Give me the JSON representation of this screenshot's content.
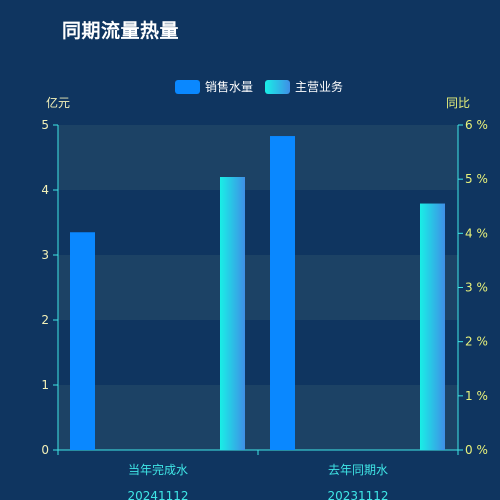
{
  "header": {
    "title": "同期流量热量"
  },
  "chart_data": {
    "type": "bar",
    "categories": [
      "当年完成水\n20241112",
      "去年同期水\n20231112"
    ],
    "series": [
      {
        "name": "销售水量",
        "values": [
          3.35,
          4.83
        ],
        "axis": "left",
        "color": "#0a88ff"
      },
      {
        "name": "主营业务",
        "values": [
          5.04,
          4.55
        ],
        "axis": "right",
        "color_from": "#19efe6",
        "color_to": "#3f8fe6"
      }
    ],
    "y_left": {
      "label": "亿元",
      "range": [
        0,
        5
      ],
      "ticks": [
        "0",
        "1",
        "2",
        "3",
        "4",
        "5"
      ]
    },
    "y_right": {
      "label": "同比",
      "range": [
        0,
        6
      ],
      "ticks": [
        "0 %",
        "1 %",
        "2 %",
        "3 %",
        "4 %",
        "5 %",
        "6 %"
      ]
    },
    "legend_position": "top-center",
    "grid": "alternating-bands",
    "colors": {
      "background": "#0f3560",
      "band": "#1c4265",
      "left_axis_text": "#f2f0b8",
      "right_axis_text": "#e9f27a",
      "category_text": "#3fe6e6",
      "axis_line": "#3fe6e6"
    }
  }
}
